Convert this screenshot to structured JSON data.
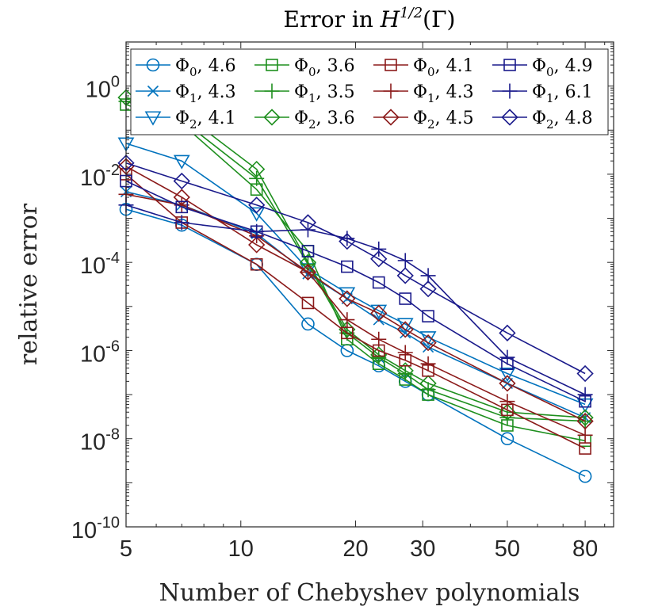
{
  "chart_data": {
    "type": "line",
    "title": "Error in H^{1/2}(Γ)",
    "title_parts": {
      "prefix": "Error in ",
      "base": "H",
      "sup": "1/2",
      "suffix": "(Γ)"
    },
    "xlabel": "Number of Chebyshev polynomials",
    "ylabel": "relative error",
    "xscale": "log",
    "yscale": "log",
    "xlim": [
      5,
      95
    ],
    "ylim": [
      1e-10,
      10.0
    ],
    "xticks": [
      5,
      10,
      20,
      30,
      50,
      80
    ],
    "xtick_labels": [
      "5",
      "10",
      "20",
      "30",
      "50",
      "80"
    ],
    "yticks": [
      1e-10,
      1e-08,
      1e-06,
      0.0001,
      0.01,
      1.0
    ],
    "ytick_labels": [
      {
        "base": "10",
        "exp": "-10"
      },
      {
        "base": "10",
        "exp": "-8"
      },
      {
        "base": "10",
        "exp": "-6"
      },
      {
        "base": "10",
        "exp": "-4"
      },
      {
        "base": "10",
        "exp": "-2"
      },
      {
        "base": "10",
        "exp": "0"
      }
    ],
    "legend_location": "top",
    "series": [
      {
        "name": "Φ0, 4.6",
        "phi": "Φ",
        "sub": "0",
        "rate": "4.6",
        "color": "#0072BD",
        "marker": "circle",
        "x": [
          5,
          7,
          11,
          15,
          19,
          23,
          27,
          31,
          50,
          80
        ],
        "y": [
          0.0016,
          0.0007,
          9e-05,
          4e-06,
          1e-06,
          4.5e-07,
          2e-07,
          1e-07,
          1e-08,
          1.4e-09
        ]
      },
      {
        "name": "Φ1, 4.3",
        "phi": "Φ",
        "sub": "1",
        "rate": "4.3",
        "color": "#0072BD",
        "marker": "x",
        "x": [
          5,
          7,
          11,
          15,
          19,
          23,
          27,
          31,
          50,
          80
        ],
        "y": [
          0.004,
          0.002,
          0.00045,
          5.5e-05,
          1.5e-05,
          5e-06,
          2.5e-06,
          1.2e-06,
          1.8e-07,
          3e-08
        ]
      },
      {
        "name": "Φ2, 4.1",
        "phi": "Φ",
        "sub": "2",
        "rate": "4.1",
        "color": "#0072BD",
        "marker": "triangle-down",
        "x": [
          5,
          7,
          11,
          15,
          19,
          23,
          27,
          31,
          50,
          80
        ],
        "y": [
          0.05,
          0.02,
          0.0013,
          7e-05,
          2e-05,
          8e-06,
          4e-06,
          2e-06,
          3e-07,
          6e-08
        ]
      },
      {
        "name": "Φ0, 3.6",
        "phi": "Φ",
        "sub": "0",
        "rate": "3.6",
        "color": "#1E8F1E",
        "marker": "square",
        "x": [
          5,
          7,
          11,
          15,
          19,
          23,
          27,
          31,
          50,
          80
        ],
        "y": [
          0.38,
          0.14,
          0.0045,
          0.00018,
          1.8e-06,
          5e-07,
          2.2e-07,
          1e-07,
          2e-08,
          9e-09
        ]
      },
      {
        "name": "Φ1, 3.5",
        "phi": "Φ",
        "sub": "1",
        "rate": "3.5",
        "color": "#1E8F1E",
        "marker": "plus",
        "x": [
          5,
          7,
          11,
          15,
          19,
          23,
          27,
          31,
          50,
          80
        ],
        "y": [
          0.45,
          0.17,
          0.008,
          9e-05,
          2.5e-06,
          7e-07,
          3e-07,
          1.3e-07,
          3e-08,
          2.5e-08
        ]
      },
      {
        "name": "Φ2, 3.6",
        "phi": "Φ",
        "sub": "2",
        "rate": "3.6",
        "color": "#1E8F1E",
        "marker": "diamond",
        "x": [
          5,
          7,
          11,
          15,
          19,
          23,
          27,
          31,
          50,
          80
        ],
        "y": [
          0.55,
          0.25,
          0.013,
          0.0001,
          3e-06,
          8e-07,
          3.5e-07,
          1.8e-07,
          4e-08,
          3e-08
        ]
      },
      {
        "name": "Φ0, 4.1",
        "phi": "Φ",
        "sub": "0",
        "rate": "4.1",
        "color": "#8B1A1A",
        "marker": "square",
        "x": [
          5,
          7,
          11,
          15,
          19,
          23,
          27,
          31,
          50,
          80
        ],
        "y": [
          0.01,
          0.0008,
          9e-05,
          1.2e-05,
          2.5e-06,
          1e-06,
          6e-07,
          3.5e-07,
          4.5e-08,
          6e-09
        ]
      },
      {
        "name": "Φ1, 4.3",
        "phi": "Φ",
        "sub": "1",
        "rate": "4.3",
        "color": "#8B1A1A",
        "marker": "plus",
        "x": [
          5,
          7,
          11,
          15,
          19,
          23,
          27,
          31,
          50,
          80
        ],
        "y": [
          0.0035,
          0.002,
          0.0004,
          6e-05,
          5e-06,
          1.8e-06,
          9e-07,
          5e-07,
          7e-08,
          1.2e-08
        ]
      },
      {
        "name": "Φ2, 4.5",
        "phi": "Φ",
        "sub": "2",
        "rate": "4.5",
        "color": "#8B1A1A",
        "marker": "diamond",
        "x": [
          5,
          7,
          11,
          15,
          19,
          23,
          27,
          31,
          50,
          80
        ],
        "y": [
          0.015,
          0.003,
          0.00025,
          6e-05,
          1.5e-05,
          7e-06,
          3e-06,
          1.5e-06,
          1.8e-07,
          2.5e-08
        ]
      },
      {
        "name": "Φ0, 4.9",
        "phi": "Φ",
        "sub": "0",
        "rate": "4.9",
        "color": "#1A1A8B",
        "marker": "square",
        "x": [
          5,
          7,
          11,
          15,
          19,
          23,
          27,
          31,
          50,
          80
        ],
        "y": [
          0.007,
          0.0018,
          0.0005,
          0.00018,
          8e-05,
          3.5e-05,
          1.5e-05,
          6e-06,
          5e-07,
          7e-08
        ]
      },
      {
        "name": "Φ1, 6.1",
        "phi": "Φ",
        "sub": "1",
        "rate": "6.1",
        "color": "#1A1A8B",
        "marker": "plus",
        "x": [
          5,
          7,
          11,
          15,
          19,
          23,
          27,
          31,
          50,
          80
        ],
        "y": [
          0.002,
          0.0008,
          0.0005,
          0.00055,
          0.00035,
          0.0002,
          0.00011,
          5e-05,
          7e-07,
          1e-07
        ]
      },
      {
        "name": "Φ2, 4.8",
        "phi": "Φ",
        "sub": "2",
        "rate": "4.8",
        "color": "#1A1A8B",
        "marker": "diamond",
        "x": [
          5,
          7,
          11,
          15,
          19,
          23,
          27,
          31,
          50,
          80
        ],
        "y": [
          0.018,
          0.007,
          0.002,
          0.0008,
          0.0003,
          0.00012,
          5e-05,
          2.5e-05,
          2.5e-06,
          3e-07
        ]
      }
    ]
  }
}
